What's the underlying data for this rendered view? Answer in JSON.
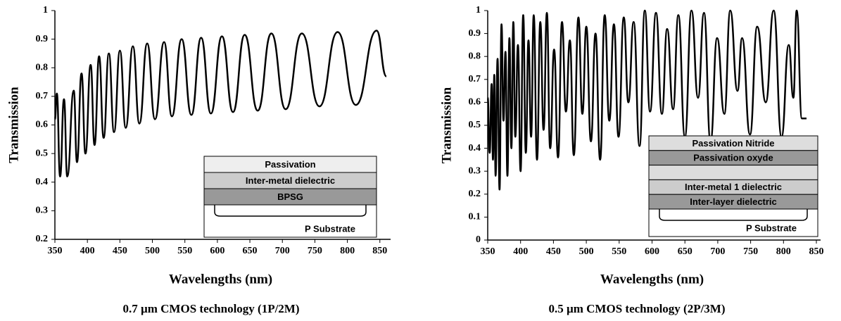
{
  "chart_data": [
    {
      "type": "line",
      "caption": "0.7 µm CMOS technology (1P/2M)",
      "x_label": "Wavelengths (nm)",
      "y_label": "Transmission",
      "xlim": [
        350,
        860
      ],
      "ylim": [
        0.2,
        1
      ],
      "xticks": [
        350,
        400,
        450,
        500,
        550,
        600,
        650,
        700,
        750,
        800,
        850
      ],
      "yticks": [
        0.2,
        0.3,
        0.4,
        0.5,
        0.6,
        0.7,
        0.8,
        0.9,
        1
      ],
      "series": [
        {
          "color": "#000000",
          "x": [
            350,
            353,
            358,
            364,
            369,
            379,
            384,
            391,
            397,
            405,
            411,
            418,
            425,
            433,
            441,
            450,
            459,
            470,
            480,
            492,
            504,
            518,
            530,
            545,
            560,
            575,
            590,
            607,
            624,
            642,
            662,
            683,
            705,
            730,
            757,
            785,
            813,
            845,
            860
          ],
          "values": [
            0.62,
            0.71,
            0.42,
            0.69,
            0.42,
            0.72,
            0.47,
            0.78,
            0.5,
            0.81,
            0.53,
            0.84,
            0.555,
            0.85,
            0.575,
            0.86,
            0.59,
            0.875,
            0.605,
            0.885,
            0.62,
            0.89,
            0.63,
            0.9,
            0.635,
            0.905,
            0.64,
            0.91,
            0.645,
            0.915,
            0.65,
            0.92,
            0.655,
            0.92,
            0.665,
            0.925,
            0.67,
            0.93,
            0.77
          ]
        }
      ],
      "inset": {
        "layers": [
          {
            "label": "Passivation",
            "color": "#eeeeee"
          },
          {
            "label": "Inter-metal dielectric",
            "color": "#cccccc"
          },
          {
            "label": "BPSG",
            "color": "#999999"
          }
        ],
        "substrate": "P Substrate"
      }
    },
    {
      "type": "line",
      "caption": "0.5 µm CMOS technology (2P/3M)",
      "x_label": "Wavelengths (nm)",
      "y_label": "Transmission",
      "xlim": [
        350,
        850
      ],
      "ylim": [
        0,
        1
      ],
      "xticks": [
        350,
        400,
        450,
        500,
        550,
        600,
        650,
        700,
        750,
        800,
        850
      ],
      "yticks": [
        0,
        0.1,
        0.2,
        0.3,
        0.4,
        0.5,
        0.6,
        0.7,
        0.8,
        0.9,
        1
      ],
      "series": [
        {
          "color": "#000000",
          "x": [
            350,
            353,
            356,
            358,
            360,
            362,
            365,
            368,
            371,
            374,
            377,
            380,
            383,
            386,
            389,
            392,
            396,
            400,
            404,
            408,
            412,
            416,
            420,
            425,
            430,
            435,
            440,
            445,
            451,
            457,
            463,
            469,
            475,
            481,
            488,
            494,
            500,
            507,
            514,
            521,
            528,
            535,
            542,
            549,
            557,
            564,
            572,
            581,
            589,
            597,
            606,
            615,
            623,
            632,
            640,
            650,
            660,
            670,
            679,
            689,
            699,
            710,
            719,
            730,
            737,
            749,
            760,
            773,
            785,
            797,
            808,
            815,
            820,
            828,
            835
          ],
          "values": [
            0.62,
            0.38,
            0.68,
            0.35,
            0.72,
            0.28,
            0.79,
            0.22,
            0.94,
            0.52,
            0.82,
            0.28,
            0.88,
            0.4,
            0.95,
            0.45,
            0.85,
            0.3,
            0.98,
            0.38,
            0.87,
            0.45,
            0.98,
            0.35,
            0.95,
            0.48,
            0.99,
            0.4,
            0.83,
            0.36,
            0.95,
            0.56,
            0.87,
            0.37,
            0.97,
            0.55,
            0.93,
            0.43,
            0.9,
            0.35,
            0.98,
            0.52,
            0.94,
            0.45,
            0.97,
            0.6,
            0.95,
            0.41,
            1,
            0.56,
            0.99,
            0.55,
            0.92,
            0.57,
            0.98,
            0.45,
            1,
            0.62,
            0.99,
            0.43,
            0.88,
            0.55,
            1,
            0.65,
            0.88,
            0.46,
            0.93,
            0.6,
            1,
            0.45,
            0.85,
            0.62,
            1,
            0.53,
            0.53
          ]
        }
      ],
      "inset": {
        "layers": [
          {
            "label": "Passivation Nitride",
            "color": "#dddddd"
          },
          {
            "label": "Passivation oxyde",
            "color": "#999999"
          },
          {
            "color": "#dddddd"
          },
          {
            "label": "Inter-metal 1 dielectric",
            "color": "#cccccc"
          },
          {
            "label": "Inter-layer dielectric",
            "color": "#999999"
          }
        ],
        "substrate": "P Substrate"
      }
    }
  ]
}
